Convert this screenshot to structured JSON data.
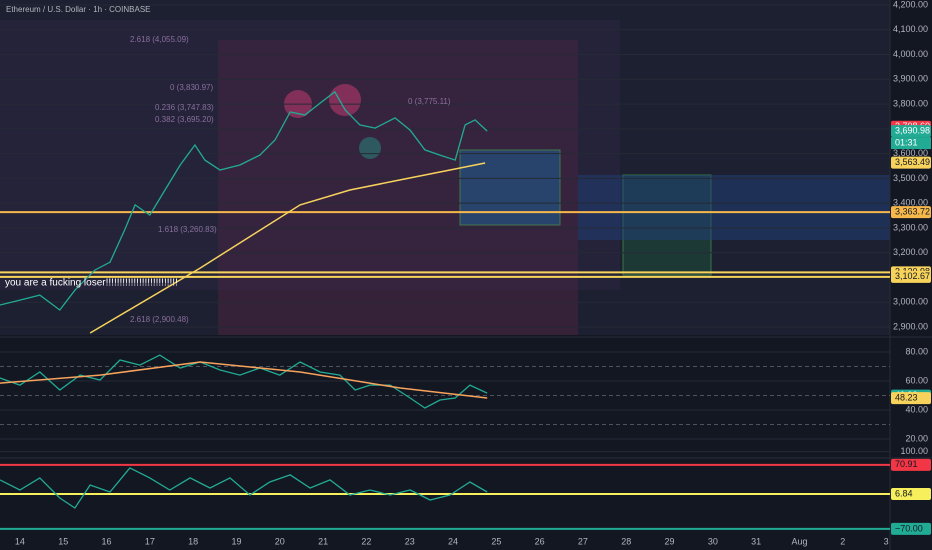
{
  "title": "Ethereum / U.S. Dollar · 1h · COINBASE",
  "countdown": "01:31",
  "chart_data": [
    {
      "type": "line",
      "xlim": [
        13.54,
        34.09
      ],
      "ylim": [
        2868,
        4220
      ],
      "yticks": [
        {
          "value": 4200,
          "label": "4,200.00"
        },
        {
          "value": 4100,
          "label": "4,100.00"
        },
        {
          "value": 4000,
          "label": "4,000.00"
        },
        {
          "value": 3900,
          "label": "3,900.00"
        },
        {
          "value": 3800,
          "label": "3,800.00"
        },
        {
          "value": 3700,
          "label": "3,700.00"
        },
        {
          "value": 3600,
          "label": "3,600.00"
        },
        {
          "value": 3500,
          "label": "3,500.00"
        },
        {
          "value": 3400,
          "label": "3,400.00"
        },
        {
          "value": 3300,
          "label": "3,300.00"
        },
        {
          "value": 3200,
          "label": "3,200.00"
        },
        {
          "value": 3100,
          "label": "3,100.00"
        },
        {
          "value": 3000,
          "label": "3,000.00"
        },
        {
          "value": 2900,
          "label": "2,900.00"
        }
      ],
      "series": [
        {
          "color": "#22ab94",
          "x": [
            13.54,
            14.0,
            14.46,
            14.92,
            15.27,
            15.73,
            16.08,
            16.42,
            16.66,
            17.0,
            17.35,
            17.7,
            18.04,
            18.27,
            18.62,
            19.08,
            19.54,
            19.89,
            20.24,
            20.58,
            20.93,
            21.27,
            21.51,
            21.85,
            22.2,
            22.66,
            23.01,
            23.35,
            23.7,
            24.05,
            24.28,
            24.51,
            24.79
          ],
          "values": [
            2989,
            3009,
            3029,
            2969,
            3049,
            3130,
            3162,
            3292,
            3393,
            3352,
            3453,
            3554,
            3635,
            3574,
            3534,
            3554,
            3594,
            3655,
            3768,
            3756,
            3804,
            3849,
            3776,
            3716,
            3703,
            3744,
            3695,
            3615,
            3594,
            3574,
            3716,
            3736,
            3691
          ]
        },
        {
          "color": "#f7d35c",
          "x": [
            15.62,
            18.16,
            20.47,
            21.62,
            22.78,
            23.7,
            24.74
          ],
          "values": [
            2876,
            3138,
            3393,
            3453,
            3494,
            3526,
            3562
          ]
        }
      ],
      "hlines": [
        {
          "value": 3363.72,
          "label": "3,363.72",
          "color": "#f7b84b"
        },
        {
          "value": 3120.98,
          "label": "3,120.98",
          "color": "#f7d35c"
        },
        {
          "value": 3102.67,
          "label": "3,102.67",
          "color": "#f7d35c"
        }
      ],
      "price_labels": [
        {
          "value": 3708.6,
          "label": "3,708.60",
          "color": "#f23645"
        },
        {
          "value": 3690.98,
          "label": "3,690.98",
          "color": "#22ab94"
        },
        {
          "value": 3563.49,
          "label": "3,563.49",
          "color": "#f7d35c"
        }
      ],
      "annotations": [
        "2.618 (4,055.09)",
        "0 (3,830.97)",
        "0.236 (3,747.83)",
        "0.382 (3,695.20)",
        "0 (3,775.11)",
        "1.618 (3,260.83)",
        "2.618 (2,900.48)",
        "you are a fucking loser!!!!!!!!!!!!!!!!!!!!!!!!!!"
      ]
    },
    {
      "type": "line",
      "xlim": [
        13.54,
        34.09
      ],
      "ylim": [
        9,
        88.3
      ],
      "yticks": [
        {
          "value": 80,
          "label": "80.00"
        },
        {
          "value": 60,
          "label": "60.00"
        },
        {
          "value": 40,
          "label": "40.00"
        },
        {
          "value": 20,
          "label": "20.00"
        }
      ],
      "series": [
        {
          "color": "#22ab94",
          "x": [
            13.54,
            14.0,
            14.46,
            14.92,
            15.39,
            15.85,
            16.31,
            16.77,
            17.23,
            17.7,
            18.16,
            18.62,
            19.08,
            19.54,
            20.0,
            20.47,
            20.93,
            21.39,
            21.74,
            22.08,
            22.55,
            23.01,
            23.35,
            23.7,
            24.05,
            24.39,
            24.79
          ],
          "values": [
            62.1,
            57.2,
            66.2,
            53.8,
            64.1,
            60.7,
            74.5,
            71.0,
            77.9,
            69.0,
            73.1,
            67.6,
            64.1,
            69.0,
            64.1,
            73.1,
            66.2,
            64.1,
            53.8,
            57.2,
            57.2,
            48.3,
            41.4,
            46.9,
            48.3,
            57.2,
            51.7
          ]
        },
        {
          "color": "#f7a35c",
          "x": [
            13.54,
            15.85,
            18.16,
            20.47,
            22.78,
            24.79
          ],
          "values": [
            58.6,
            64.1,
            73.1,
            66.2,
            55.2,
            48.3
          ]
        }
      ],
      "hlines": [
        {
          "value": 70,
          "color": "#787b86",
          "dash": true
        },
        {
          "value": 50,
          "color": "#787b86",
          "dash": true
        },
        {
          "value": 30,
          "color": "#787b86",
          "dash": true
        }
      ],
      "price_labels": [
        {
          "value": 49.93,
          "label": "49.93",
          "color": "#22ab94"
        },
        {
          "value": 48.23,
          "label": "48.23",
          "color": "#f7d35c"
        }
      ]
    },
    {
      "type": "line",
      "xlim": [
        13.54,
        34.09
      ],
      "ylim": [
        -90,
        108
      ],
      "yticks": [
        {
          "value": 100,
          "label": "100.00"
        }
      ],
      "xticks": [
        14,
        15,
        16,
        17,
        18,
        19,
        20,
        21,
        22,
        23,
        24,
        25,
        26,
        27,
        28,
        29,
        30,
        31,
        {
          "value": 32,
          "label": "Aug"
        },
        {
          "value": 33,
          "label": "2"
        },
        {
          "value": 34,
          "label": "3"
        }
      ],
      "series": [
        {
          "color": "#22ab94",
          "x": [
            13.54,
            14.0,
            14.46,
            14.92,
            15.27,
            15.62,
            16.08,
            16.54,
            17.0,
            17.46,
            17.93,
            18.39,
            18.85,
            19.31,
            19.77,
            20.24,
            20.7,
            21.16,
            21.62,
            22.08,
            22.55,
            23.01,
            23.47,
            23.93,
            24.39,
            24.79
          ],
          "values": [
            37.8,
            15.7,
            42.2,
            -2.0,
            -24.1,
            26.7,
            11.3,
            64.2,
            42.2,
            15.7,
            42.2,
            20.1,
            42.2,
            4.6,
            33.3,
            48.8,
            20.1,
            37.8,
            4.6,
            15.7,
            4.6,
            15.7,
            -6.4,
            4.6,
            33.3,
            11.3
          ]
        }
      ],
      "hlines": [
        {
          "value": 70.91,
          "label": "70.91",
          "color": "#f23645"
        },
        {
          "value": 6.84,
          "label": "6.84",
          "color": "#f7f05c"
        },
        {
          "value": -70,
          "label": "−70.00",
          "color": "#22ab94"
        }
      ]
    }
  ]
}
